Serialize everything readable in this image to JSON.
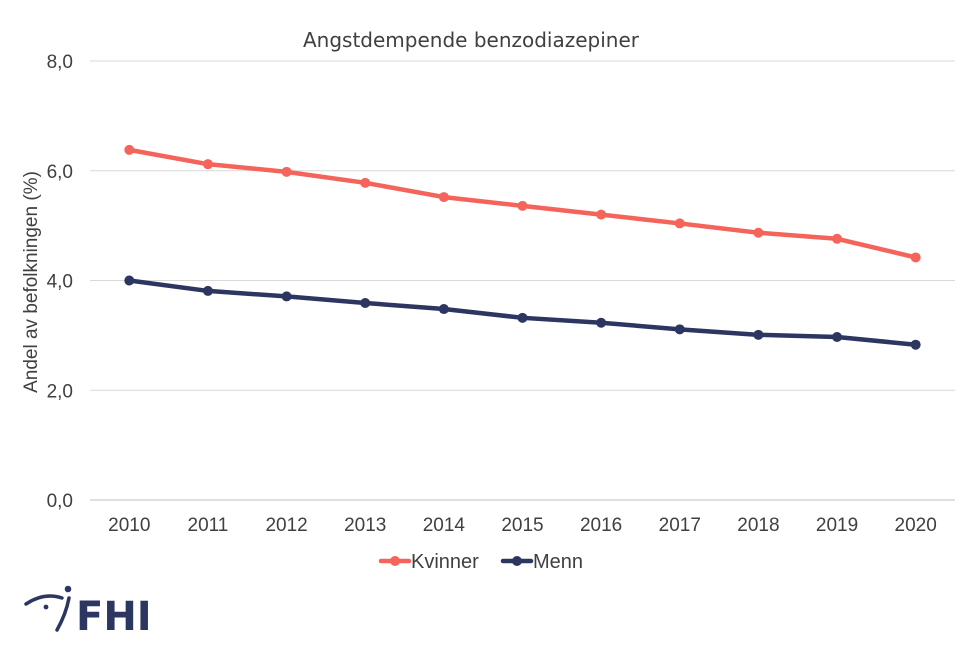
{
  "chart_data": {
    "type": "line",
    "title": "Angstdempende benzodiazepiner",
    "xlabel": "",
    "ylabel": "Andel av befolkningen (%)",
    "ylim": [
      0,
      8
    ],
    "yticks": [
      "0,0",
      "2,0",
      "4,0",
      "6,0",
      "8,0"
    ],
    "ytick_values": [
      0,
      2,
      4,
      6,
      8
    ],
    "categories": [
      "2010",
      "2011",
      "2012",
      "2013",
      "2014",
      "2015",
      "2016",
      "2017",
      "2018",
      "2019",
      "2020"
    ],
    "series": [
      {
        "name": "Kvinner",
        "color": "#f4645a",
        "values": [
          6.38,
          6.12,
          5.98,
          5.78,
          5.52,
          5.36,
          5.2,
          5.04,
          4.87,
          4.76,
          4.42
        ]
      },
      {
        "name": "Menn",
        "color": "#2d3561",
        "values": [
          4.0,
          3.81,
          3.71,
          3.59,
          3.48,
          3.32,
          3.23,
          3.11,
          3.01,
          2.97,
          2.83
        ]
      }
    ],
    "grid": true,
    "legend_position": "bottom-center"
  },
  "logo": {
    "text": "FHI",
    "icon": "fhi-logo-icon"
  }
}
